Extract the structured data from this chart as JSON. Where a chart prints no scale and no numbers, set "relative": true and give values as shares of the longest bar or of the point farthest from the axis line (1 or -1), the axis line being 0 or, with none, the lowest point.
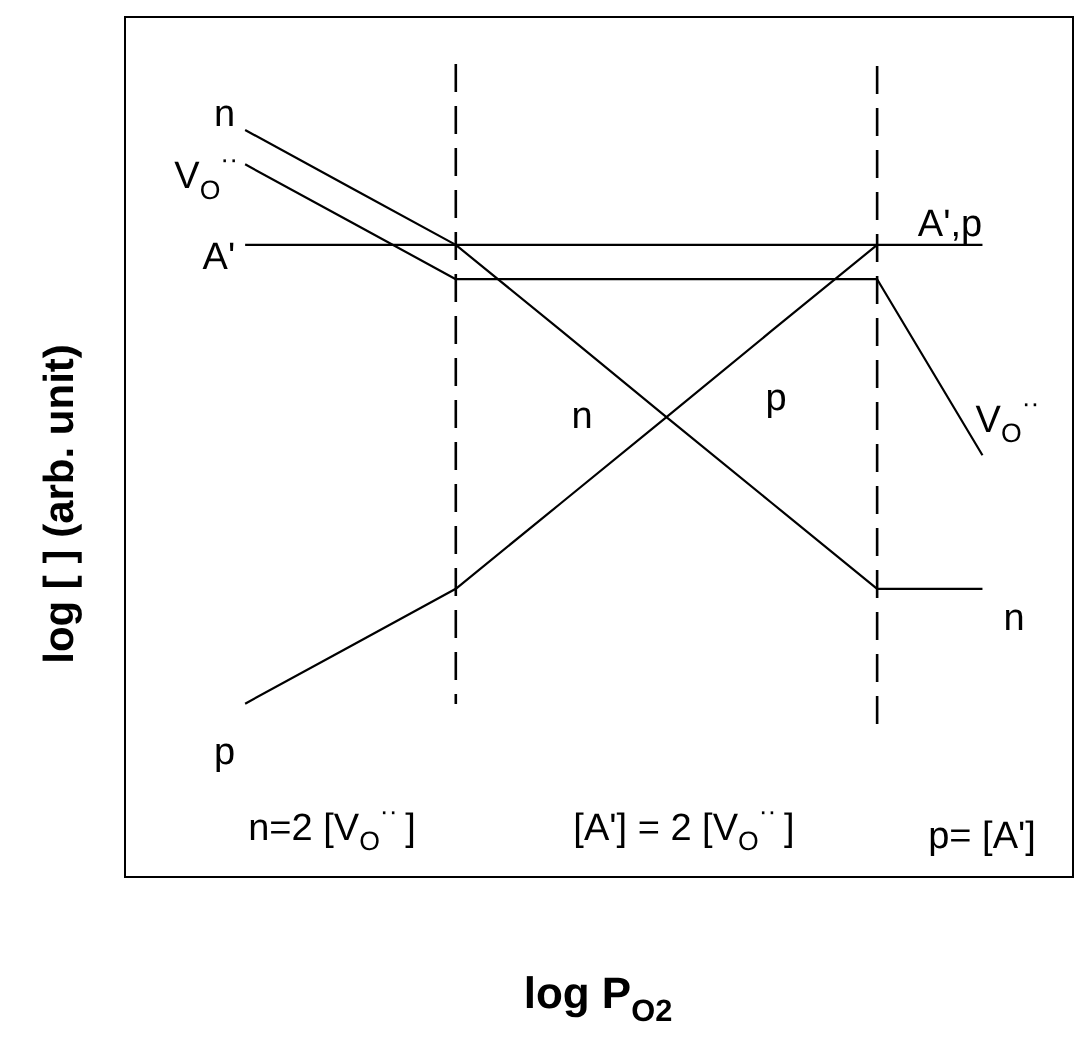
{
  "chart_data": {
    "type": "line",
    "relative": true,
    "xlabel": "log P$_{O2}$",
    "ylabel": "log [ ] (arb. unit)",
    "categories": [
      null,
      null,
      null,
      null,
      null,
      null,
      null,
      null
    ],
    "series": [
      {
        "name": "n",
        "color": "#000000",
        "values": [
          1,
          0.923,
          0.846,
          0.731,
          0.615,
          0.5,
          0.385,
          0.385
        ]
      },
      {
        "name": "V$_{O}$$^{··}$",
        "color": "#000000",
        "values": [
          0.954,
          0.877,
          0.8,
          0.8,
          0.8,
          0.8,
          0.8,
          0.564
        ]
      },
      {
        "name": "A'",
        "color": "#000000",
        "values": [
          0.846,
          0.846,
          0.846,
          0.846,
          0.846,
          0.846,
          0.846,
          0.846
        ]
      },
      {
        "name": "p",
        "color": "#000000",
        "values": [
          0.231,
          0.308,
          0.385,
          0.5,
          0.615,
          0.731,
          0.846,
          null
        ]
      }
    ],
    "annotations": [
      "n",
      "p",
      "A',p",
      "V$_{O}$$^{··}$",
      "n",
      "n=2 [V$_{O}$$^{··}$ ]",
      "[A'] = 2 [V$_{O}$$^{··}$ ]",
      "p= [A']"
    ]
  }
}
